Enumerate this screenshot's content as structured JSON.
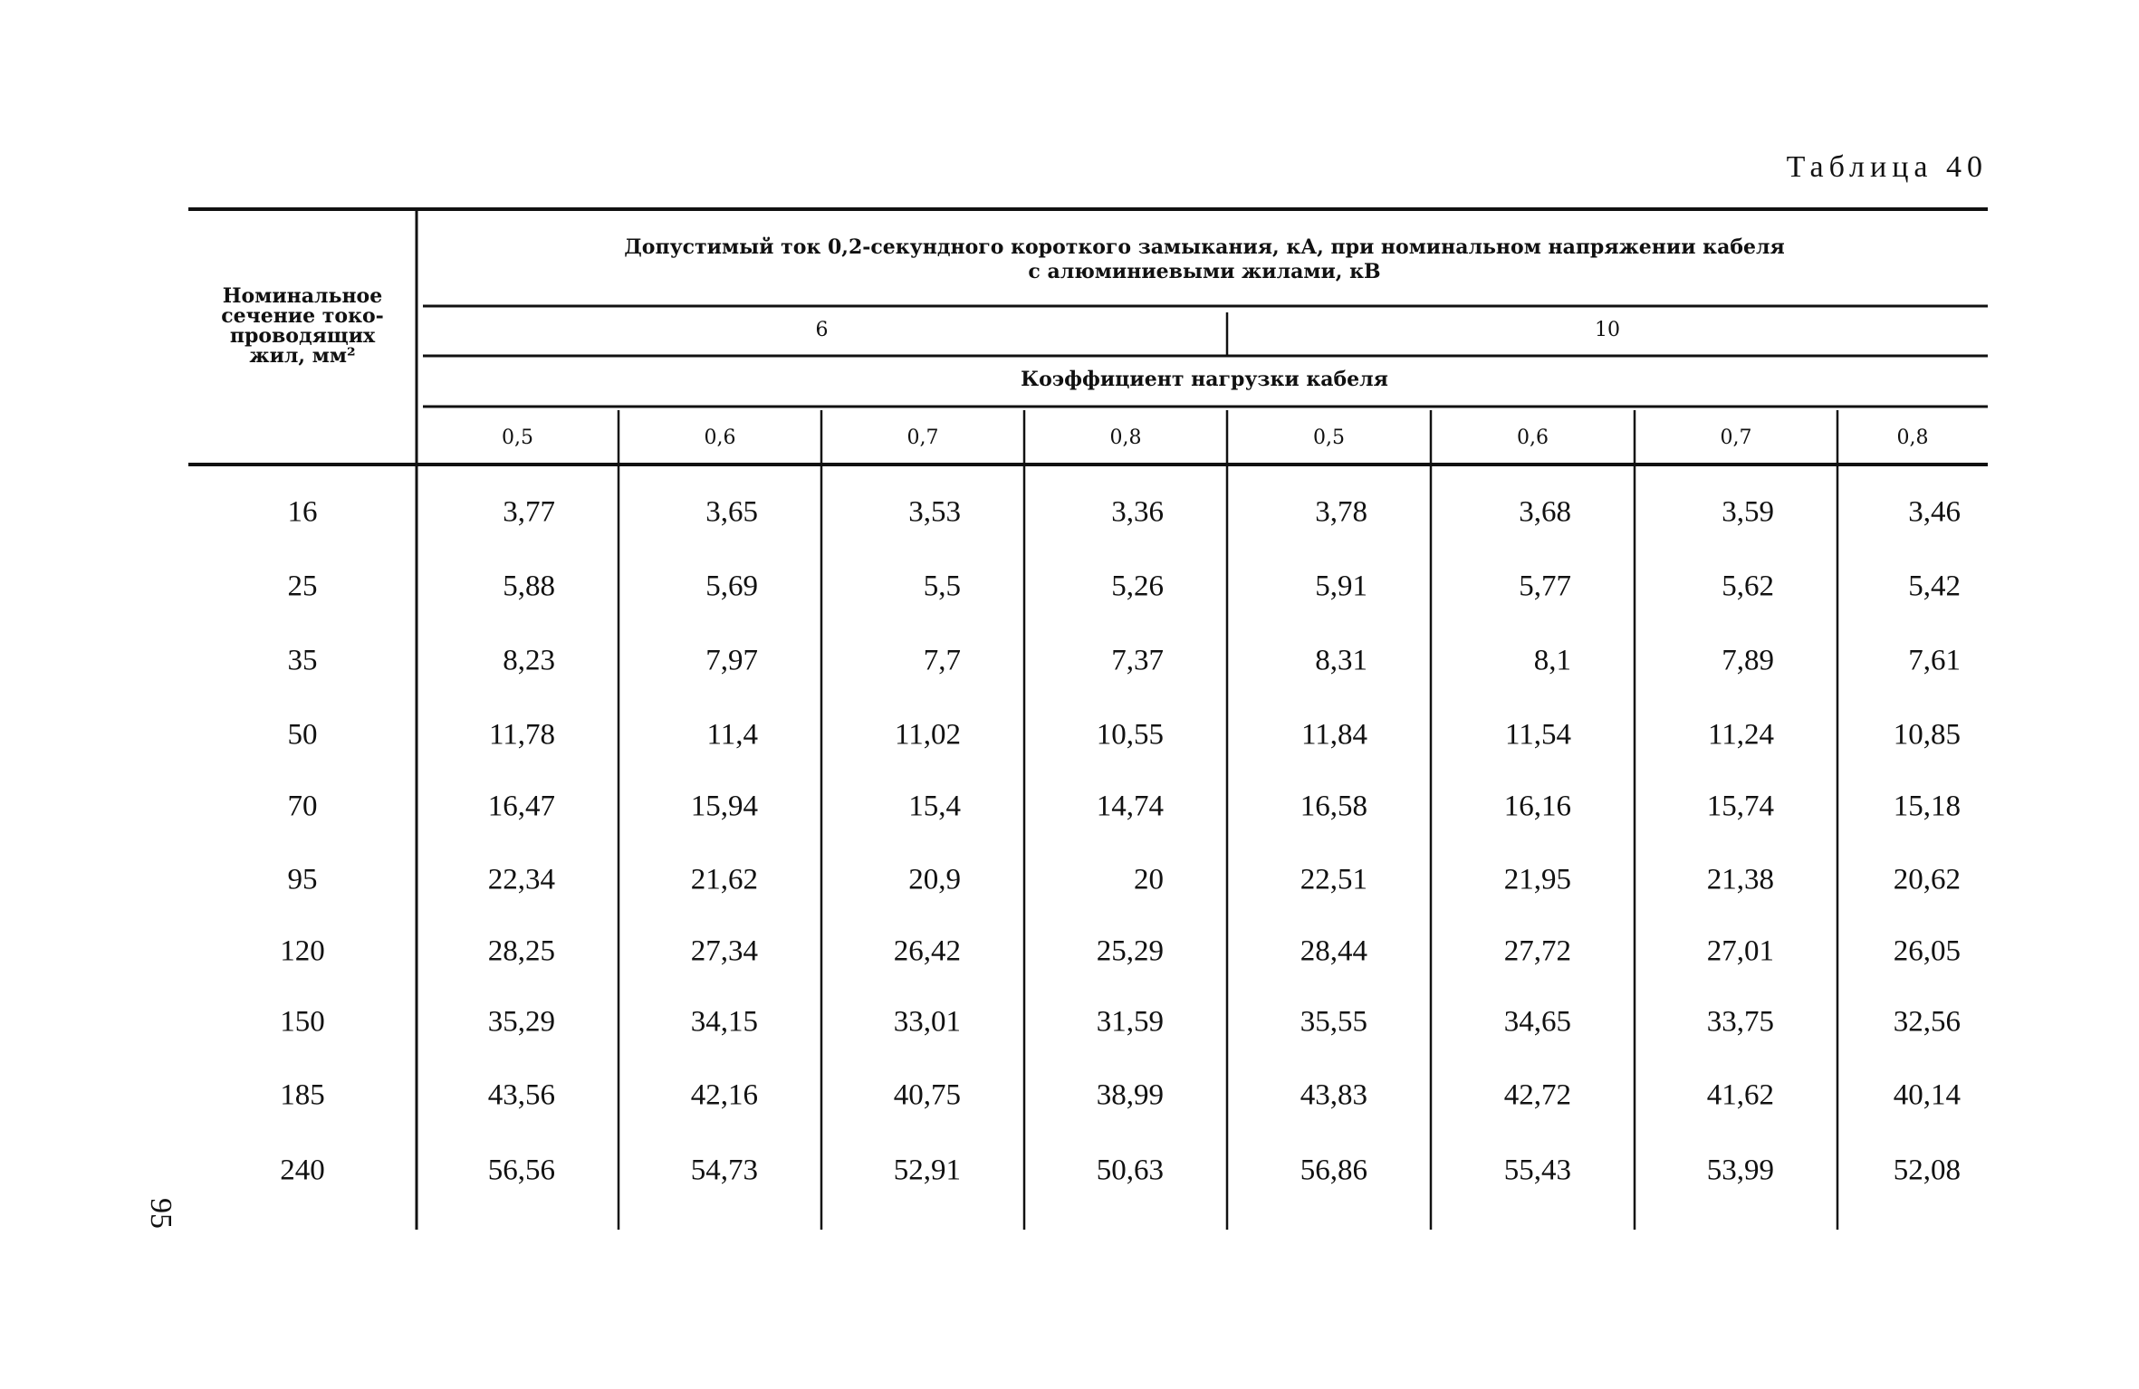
{
  "caption": "Таблица 40",
  "page_number": "95",
  "header": {
    "row_header_lines": [
      "Номинальное",
      "сечение токо-",
      "проводящих",
      "жил, мм²"
    ],
    "title_lines": [
      "Допустимый ток 0,2-секундного короткого замыкания, кА, при номинальном напряжении кабеля",
      "с алюминиевыми жилами, кВ"
    ],
    "voltages": [
      "6",
      "10"
    ],
    "subtitle": "Коэффициент нагрузки кабеля",
    "coefficients": [
      "0,5",
      "0,6",
      "0,7",
      "0,8",
      "0,5",
      "0,6",
      "0,7",
      "0,8"
    ]
  },
  "table": {
    "rows": [
      [
        "16",
        "3,77",
        "3,65",
        "3,53",
        "3,36",
        "3,78",
        "3,68",
        "3,59",
        "3,46"
      ],
      [
        "25",
        "5,88",
        "5,69",
        "5,5",
        "5,26",
        "5,91",
        "5,77",
        "5,62",
        "5,42"
      ],
      [
        "35",
        "8,23",
        "7,97",
        "7,7",
        "7,37",
        "8,31",
        "8,1",
        "7,89",
        "7,61"
      ],
      [
        "50",
        "11,78",
        "11,4",
        "11,02",
        "10,55",
        "11,84",
        "11,54",
        "11,24",
        "10,85"
      ],
      [
        "70",
        "16,47",
        "15,94",
        "15,4",
        "14,74",
        "16,58",
        "16,16",
        "15,74",
        "15,18"
      ],
      [
        "95",
        "22,34",
        "21,62",
        "20,9",
        "20",
        "22,51",
        "21,95",
        "21,38",
        "20,62"
      ],
      [
        "120",
        "28,25",
        "27,34",
        "26,42",
        "25,29",
        "28,44",
        "27,72",
        "27,01",
        "26,05"
      ],
      [
        "150",
        "35,29",
        "34,15",
        "33,01",
        "31,59",
        "35,55",
        "34,65",
        "33,75",
        "32,56"
      ],
      [
        "185",
        "43,56",
        "42,16",
        "40,75",
        "38,99",
        "43,83",
        "42,72",
        "41,62",
        "40,14"
      ],
      [
        "240",
        "56,56",
        "54,73",
        "52,91",
        "50,63",
        "56,86",
        "55,43",
        "53,99",
        "52,08"
      ]
    ]
  }
}
